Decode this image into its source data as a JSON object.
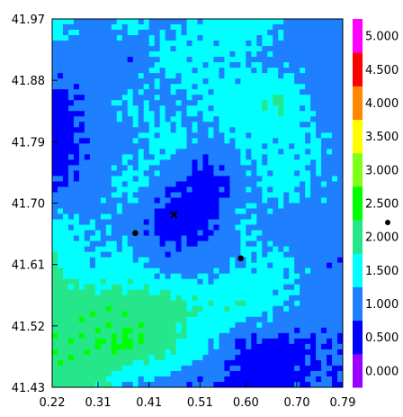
{
  "chart_data": {
    "type": "heatmap",
    "title": "",
    "xlabel": "",
    "ylabel": "",
    "xlim": [
      0.22,
      0.79
    ],
    "ylim": [
      41.43,
      41.97
    ],
    "x_ticks": [
      "0.22",
      "0.31",
      "0.41",
      "0.51",
      "0.60",
      "0.70",
      "0.79"
    ],
    "y_ticks": [
      "41.97",
      "41.88",
      "41.79",
      "41.70",
      "41.61",
      "41.52",
      "41.43"
    ],
    "legend_placement": "right",
    "levels": [
      {
        "label": "0.000",
        "min": 0.0,
        "max": 0.5,
        "color": "#9900ff"
      },
      {
        "label": "0.500",
        "min": 0.5,
        "max": 1.0,
        "color": "#0000ff"
      },
      {
        "label": "1.000",
        "min": 1.0,
        "max": 1.5,
        "color": "#1e7fff"
      },
      {
        "label": "1.500",
        "min": 1.5,
        "max": 2.0,
        "color": "#00ffff"
      },
      {
        "label": "2.000",
        "min": 2.0,
        "max": 2.5,
        "color": "#26e68a"
      },
      {
        "label": "2.500",
        "min": 2.5,
        "max": 3.0,
        "color": "#00ff00"
      },
      {
        "label": "3.000",
        "min": 3.0,
        "max": 3.5,
        "color": "#80ff1a"
      },
      {
        "label": "3.500",
        "min": 3.5,
        "max": 4.0,
        "color": "#ffff00"
      },
      {
        "label": "4.000",
        "min": 4.0,
        "max": 4.5,
        "color": "#ff8800"
      },
      {
        "label": "4.500",
        "min": 4.5,
        "max": 5.0,
        "color": "#ff0000"
      },
      {
        "label": "5.000",
        "min": 5.0,
        "max": 5.5,
        "color": "#ff00ff"
      }
    ],
    "field": {
      "x": [
        0.22,
        0.295,
        0.37,
        0.445,
        0.52,
        0.595,
        0.67,
        0.745,
        0.79
      ],
      "y": [
        41.97,
        41.91,
        41.85,
        41.79,
        41.73,
        41.67,
        41.61,
        41.55,
        41.49,
        41.43
      ],
      "z": [
        [
          1.9,
          1.2,
          1.7,
          1.3,
          1.7,
          1.9,
          1.5,
          1.2,
          1.2
        ],
        [
          1.3,
          1.2,
          1.1,
          1.7,
          1.6,
          1.5,
          1.3,
          1.2,
          1.2
        ],
        [
          0.8,
          1.2,
          1.6,
          1.3,
          1.6,
          1.8,
          2.1,
          1.2,
          1.3
        ],
        [
          0.6,
          1.1,
          1.3,
          1.8,
          1.3,
          1.6,
          1.6,
          1.6,
          1.1
        ],
        [
          0.9,
          1.2,
          1.7,
          1.2,
          0.6,
          1.3,
          1.8,
          1.4,
          1.3
        ],
        [
          1.7,
          1.5,
          1.3,
          0.7,
          0.8,
          1.6,
          1.1,
          1.3,
          1.2
        ],
        [
          2.1,
          1.5,
          1.7,
          1.2,
          1.3,
          1.5,
          1.7,
          1.2,
          1.1
        ],
        [
          2.2,
          2.4,
          2.3,
          2.3,
          1.9,
          2.0,
          1.5,
          1.3,
          1.2
        ],
        [
          2.4,
          2.4,
          2.6,
          2.2,
          1.6,
          0.9,
          0.8,
          1.0,
          1.1
        ],
        [
          2.3,
          2.2,
          1.4,
          1.2,
          1.0,
          0.8,
          0.7,
          1.1,
          0.9
        ]
      ]
    },
    "points": [
      {
        "x": 0.383,
        "y": 41.656,
        "symbol": "dot"
      },
      {
        "x": 0.59,
        "y": 41.619,
        "symbol": "dot"
      },
      {
        "x": 0.459,
        "y": 41.683,
        "symbol": "x"
      }
    ]
  }
}
